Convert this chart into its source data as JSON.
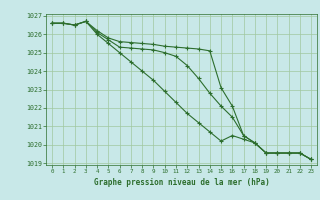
{
  "x": [
    0,
    1,
    2,
    3,
    4,
    5,
    6,
    7,
    8,
    9,
    10,
    11,
    12,
    13,
    14,
    15,
    16,
    17,
    18,
    19,
    20,
    21,
    22,
    23
  ],
  "line1": [
    1026.6,
    1026.6,
    1026.5,
    1026.7,
    1026.2,
    1025.8,
    1025.6,
    1025.55,
    1025.5,
    1025.45,
    1025.35,
    1025.3,
    1025.25,
    1025.2,
    1025.1,
    1023.1,
    1022.1,
    1020.5,
    1020.1,
    1019.55,
    1019.55,
    1019.55,
    1019.55,
    1019.2
  ],
  "line2": [
    1026.6,
    1026.6,
    1026.5,
    1026.7,
    1026.1,
    1025.7,
    1025.3,
    1025.25,
    1025.2,
    1025.15,
    1025.0,
    1024.8,
    1024.3,
    1023.6,
    1022.8,
    1022.1,
    1021.5,
    1020.5,
    1020.1,
    1019.55,
    1019.55,
    1019.55,
    1019.55,
    1019.2
  ],
  "line3": [
    1026.6,
    1026.6,
    1026.5,
    1026.7,
    1026.0,
    1025.5,
    1025.0,
    1024.5,
    1024.0,
    1023.5,
    1022.9,
    1022.3,
    1021.7,
    1021.2,
    1020.7,
    1020.2,
    1020.5,
    1020.3,
    1020.1,
    1019.55,
    1019.55,
    1019.55,
    1019.55,
    1019.2
  ],
  "ylim": [
    1018.9,
    1027.1
  ],
  "yticks": [
    1019,
    1020,
    1021,
    1022,
    1023,
    1024,
    1025,
    1026,
    1027
  ],
  "xticks": [
    0,
    1,
    2,
    3,
    4,
    5,
    6,
    7,
    8,
    9,
    10,
    11,
    12,
    13,
    14,
    15,
    16,
    17,
    18,
    19,
    20,
    21,
    22,
    23
  ],
  "line_color": "#2d6e2d",
  "bg_color": "#c8e8e8",
  "grid_color": "#a0c8a0",
  "xlabel": "Graphe pression niveau de la mer (hPa)",
  "xlabel_color": "#2d6e2d",
  "tick_color": "#2d6e2d",
  "spine_color": "#2d6e2d"
}
